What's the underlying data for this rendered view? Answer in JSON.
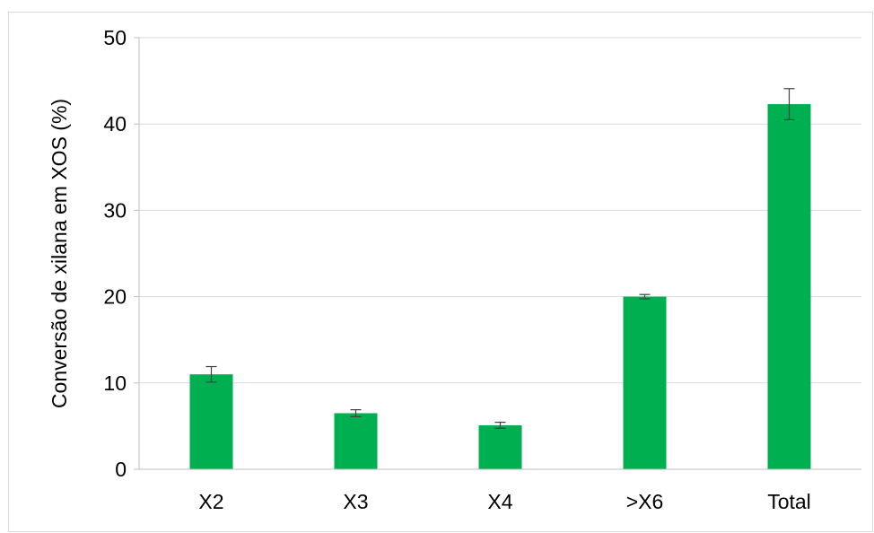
{
  "chart_data": {
    "type": "bar",
    "categories": [
      "X2",
      "X3",
      "X4",
      ">X6",
      "Total"
    ],
    "values": [
      11.0,
      6.5,
      5.1,
      20.0,
      42.3
    ],
    "errors": [
      0.9,
      0.4,
      0.35,
      0.25,
      1.8
    ],
    "ylabel": "Conversão de xilana em XOS (%)",
    "xlabel": "",
    "ylim": [
      0,
      50
    ],
    "yticks": [
      0,
      10,
      20,
      30,
      40,
      50
    ],
    "grid": true,
    "legend": "none",
    "colors": {
      "bar": "#00b050",
      "grid": "#d9d9d9",
      "axis": "#bfbfbf",
      "error": "#404040"
    }
  }
}
